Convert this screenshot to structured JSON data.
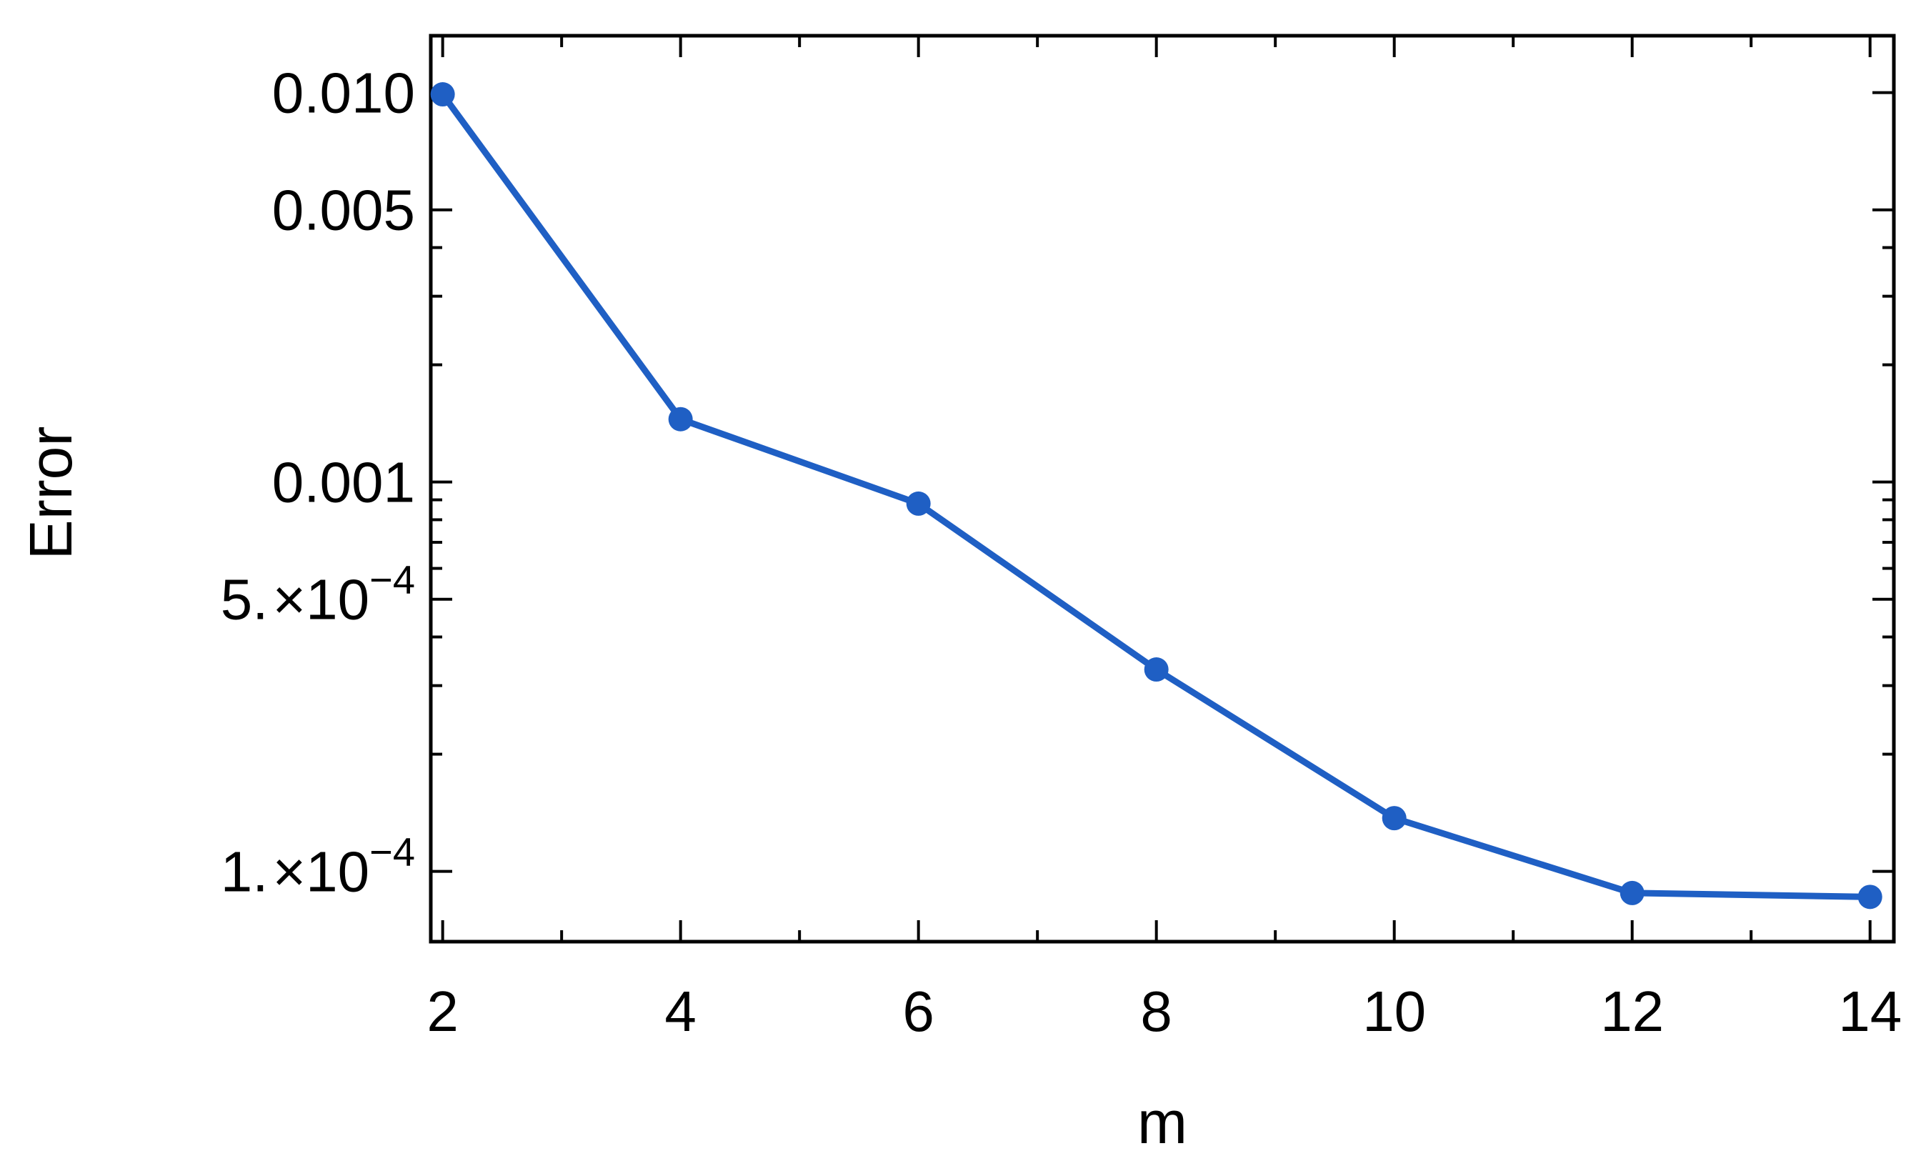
{
  "chart_data": {
    "type": "line",
    "title": "",
    "xlabel": "m",
    "ylabel": "Error",
    "x_scale": "linear",
    "y_scale": "log",
    "xlim": [
      1.9,
      14.2
    ],
    "ylim": [
      6.6e-05,
      0.014
    ],
    "x_major_ticks": [
      {
        "value": 2,
        "label": "2"
      },
      {
        "value": 4,
        "label": "4"
      },
      {
        "value": 6,
        "label": "6"
      },
      {
        "value": 8,
        "label": "8"
      },
      {
        "value": 10,
        "label": "10"
      },
      {
        "value": 12,
        "label": "12"
      },
      {
        "value": 14,
        "label": "14"
      }
    ],
    "x_minor_ticks": [
      3,
      5,
      7,
      9,
      11,
      13
    ],
    "y_major_ticks": [
      {
        "value": 0.01,
        "label": "0.010"
      },
      {
        "value": 0.005,
        "label": "0.005"
      },
      {
        "value": 0.001,
        "label": "0.001"
      },
      {
        "value": 0.0005,
        "mantissa": "5.",
        "times": "×",
        "base": "10",
        "exponent": "−4"
      },
      {
        "value": 0.0001,
        "mantissa": "1.",
        "times": "×",
        "base": "10",
        "exponent": "−4"
      }
    ],
    "y_minor_ticks": [
      0.0002,
      0.0003,
      0.0004,
      0.0006,
      0.0007,
      0.0008,
      0.0009,
      0.002,
      0.003,
      0.004
    ],
    "grid": false,
    "series": [
      {
        "color": "#1f5fc4",
        "x": [
          2,
          4,
          6,
          8,
          10,
          12,
          14
        ],
        "y": [
          0.0099,
          0.00145,
          0.00088,
          0.00033,
          0.000137,
          8.8e-05,
          8.6e-05
        ]
      }
    ]
  }
}
